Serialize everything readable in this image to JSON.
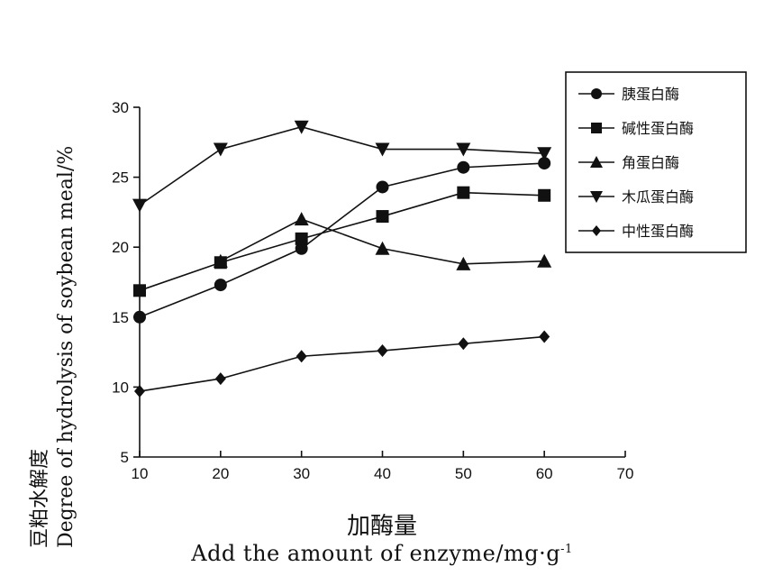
{
  "chart_data": {
    "type": "line",
    "x": [
      10,
      20,
      30,
      40,
      50,
      60
    ],
    "xticks": [
      10,
      20,
      30,
      40,
      50,
      60,
      70
    ],
    "yticks": [
      5,
      10,
      15,
      20,
      25,
      30
    ],
    "xlim": [
      10,
      70
    ],
    "ylim": [
      5,
      30
    ],
    "xlabel_cn": "加酶量",
    "xlabel_en": "Add the amount of enzyme/mg",
    "xlabel_unit_sep": "·",
    "xlabel_unit": "g",
    "xlabel_sup": "-1",
    "ylabel_cn": "豆粕水解度",
    "ylabel_en": "Degree of hydrolysis of soybean meal/%",
    "legend_position": "top-right",
    "grid": false,
    "series": [
      {
        "name": "胰蛋白酶",
        "marker": "circle",
        "values": [
          15.0,
          17.3,
          19.9,
          24.3,
          25.7,
          26.0
        ]
      },
      {
        "name": "碱性蛋白酶",
        "marker": "square",
        "values": [
          16.9,
          18.9,
          20.6,
          22.2,
          23.9,
          23.7
        ]
      },
      {
        "name": "角蛋白酶",
        "marker": "triangle-up",
        "values": [
          null,
          19.0,
          22.0,
          19.9,
          18.8,
          19.0
        ]
      },
      {
        "name": "木瓜蛋白酶",
        "marker": "triangle-down",
        "values": [
          23.0,
          27.0,
          28.6,
          27.0,
          27.0,
          26.7
        ]
      },
      {
        "name": "中性蛋白酶",
        "marker": "diamond",
        "values": [
          9.7,
          10.6,
          12.2,
          12.6,
          13.1,
          13.6
        ]
      }
    ]
  }
}
